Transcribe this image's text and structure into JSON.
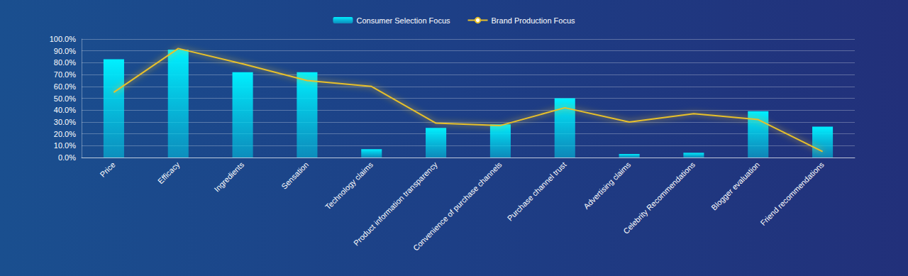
{
  "chart_data": {
    "type": "bar",
    "categories": [
      "Price",
      "Efficacy",
      "Ingredients",
      "Sensation",
      "Technology claims",
      "Product information transparency",
      "Convenience of purchase channels",
      "Purchase channel trust",
      "Advertising claims",
      "Celebrity Recommendations",
      "Blogger evaluation",
      "Friend recommendations"
    ],
    "series": [
      {
        "name": "Consumer Selection Focus",
        "type": "bar",
        "color": "#00f0ff",
        "values": [
          83,
          91,
          72,
          72,
          7,
          25,
          28,
          50,
          3,
          4,
          39,
          26
        ]
      },
      {
        "name": "Brand Production Focus",
        "type": "line",
        "color": "#e8c02a",
        "marker": "none",
        "values": [
          55,
          92,
          79,
          65,
          60,
          29,
          27,
          42,
          30,
          37,
          32,
          5
        ]
      }
    ],
    "ylim": [
      0,
      100
    ],
    "yticks": [
      {
        "value": 0,
        "label": "0.0%"
      },
      {
        "value": 10,
        "label": "10.0%"
      },
      {
        "value": 20,
        "label": "20.0%"
      },
      {
        "value": 30,
        "label": "30.0%"
      },
      {
        "value": 40,
        "label": "40.0%"
      },
      {
        "value": 50,
        "label": "50.0%"
      },
      {
        "value": 60,
        "label": "60.0%"
      },
      {
        "value": 70,
        "label": "70.0%"
      },
      {
        "value": 80,
        "label": "80.0%"
      },
      {
        "value": 90,
        "label": "90.0%"
      },
      {
        "value": 100,
        "label": "100.0%"
      }
    ],
    "grid": true,
    "legend": "top"
  }
}
